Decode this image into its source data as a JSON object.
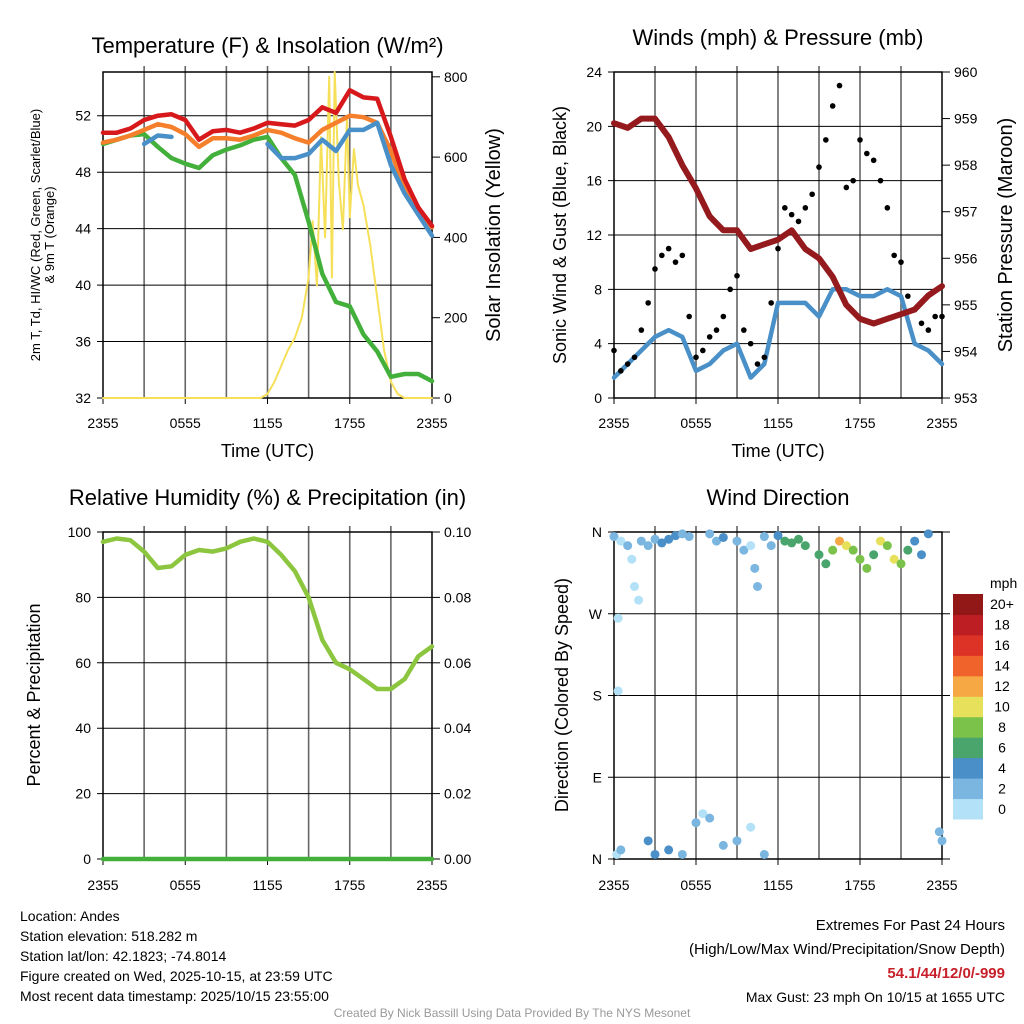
{
  "footer": {
    "location": "Location: Andes",
    "elevation": "Station elevation: 518.282 m",
    "latlon": "Station lat/lon: 42.1823; -74.8014",
    "created": "Figure created on Wed, 2025-10-15, at 23:59 UTC",
    "timestamp": "Most recent data timestamp: 2025/10/15 23:55:00",
    "extremes_title": "Extremes For Past 24 Hours",
    "extremes_legend": "(High/Low/Max Wind/Precipitation/Snow Depth)",
    "extremes_values": "54.1/44/12/0/-999",
    "max_gust": "Max Gust: 23 mph On 10/15 at 1655 UTC",
    "credit": "Created By Nick Bassill Using Data Provided By The NYS Mesonet"
  },
  "colors": {
    "red": "#d7191c",
    "orange": "#f57f2b",
    "blue": "#4a90c8",
    "green": "#44b03c",
    "yellow": "#f6e05a",
    "maroon": "#951a1d",
    "rh": "#8cc63f",
    "precip": "#44b03c",
    "gust": "#000000"
  },
  "chart_data": [
    {
      "type": "line",
      "title": "Temperature (F) & Insolation (W/m²)",
      "xlabel": "Time (UTC)",
      "ylabel": [
        "2m T, Td, HI/WC (Red, Green, Scarlet/Blue)",
        "& 9m T (Orange)"
      ],
      "ylabel_right": "Solar Insolation (Yellow)",
      "xticks": [
        "2355",
        "0555",
        "1155",
        "1755",
        "2355"
      ],
      "xlim": [
        0,
        24
      ],
      "ylim": [
        32,
        55.1
      ],
      "yticks": [
        32,
        36,
        40,
        44,
        48,
        52
      ],
      "ylim_right": [
        0,
        812
      ],
      "yticks_right": [
        0,
        200,
        400,
        600,
        800
      ],
      "x": [
        0,
        1,
        2,
        3,
        4,
        5,
        6,
        7,
        8,
        9,
        10,
        11,
        12,
        13,
        14,
        15,
        16,
        17,
        18,
        19,
        20,
        21,
        22,
        23,
        24
      ],
      "series": [
        {
          "name": "2m T",
          "color_key": "red",
          "axis": "left",
          "values": [
            50.8,
            50.8,
            51.1,
            51.7,
            52.0,
            52.1,
            51.7,
            50.3,
            50.9,
            51.0,
            50.8,
            51.1,
            51.5,
            51.4,
            51.3,
            51.7,
            52.6,
            52.2,
            53.8,
            53.3,
            53.2,
            50.5,
            47.5,
            45.5,
            44.2
          ]
        },
        {
          "name": "9m T",
          "color_key": "orange",
          "axis": "left",
          "values": [
            50.1,
            50.3,
            50.6,
            51.0,
            51.4,
            51.2,
            50.7,
            49.8,
            50.4,
            50.4,
            50.3,
            50.6,
            51.0,
            50.8,
            50.4,
            50.1,
            51.0,
            51.5,
            52.0,
            51.9,
            51.5,
            49.5,
            46.8,
            45.3,
            44.1
          ]
        },
        {
          "name": "HI/WC",
          "color_key": "blue",
          "axis": "left",
          "values": [
            null,
            null,
            null,
            50.0,
            50.6,
            50.5,
            null,
            null,
            null,
            null,
            null,
            null,
            50.0,
            49.0,
            49.0,
            49.3,
            50.3,
            49.5,
            51.0,
            51.0,
            51.5,
            48.5,
            46.5,
            45.0,
            43.5
          ]
        },
        {
          "name": "Td",
          "color_key": "green",
          "axis": "left",
          "values": [
            50.0,
            50.3,
            50.6,
            50.7,
            49.8,
            49.0,
            48.6,
            48.3,
            49.2,
            49.6,
            49.9,
            50.3,
            50.5,
            49.0,
            47.8,
            44.5,
            40.8,
            38.8,
            38.5,
            36.5,
            35.3,
            33.5,
            33.7,
            33.7,
            33.2
          ]
        },
        {
          "name": "Solar Insolation",
          "color_key": "yellow",
          "axis": "right",
          "x": [
            0,
            11.5,
            12,
            12.5,
            13,
            13.5,
            14,
            14.5,
            15,
            15.3,
            15.6,
            15.9,
            16.2,
            16.5,
            16.7,
            16.9,
            17.2,
            17.5,
            17.8,
            18,
            18.3,
            18.6,
            19,
            19.5,
            20,
            20.5,
            21,
            21.5,
            22,
            24
          ],
          "values": [
            0,
            0,
            10,
            40,
            80,
            120,
            150,
            200,
            300,
            440,
            280,
            650,
            400,
            800,
            300,
            812,
            540,
            420,
            700,
            450,
            620,
            530,
            480,
            380,
            250,
            120,
            40,
            10,
            0,
            0
          ]
        }
      ]
    },
    {
      "type": "line",
      "title": "Winds (mph) & Pressure (mb)",
      "xlabel": "Time (UTC)",
      "ylabel": "Sonic Wind & Gust (Blue, Black)",
      "ylabel_right": "Station Pressure (Maroon)",
      "xticks": [
        "2355",
        "0555",
        "1155",
        "1755",
        "2355"
      ],
      "xlim": [
        0,
        24
      ],
      "ylim": [
        0,
        24
      ],
      "yticks": [
        0,
        4,
        8,
        12,
        16,
        20,
        24
      ],
      "ylim_right": [
        953,
        960
      ],
      "yticks_right": [
        953,
        954,
        955,
        956,
        957,
        958,
        959,
        960
      ],
      "x": [
        0,
        1,
        2,
        3,
        4,
        5,
        6,
        7,
        8,
        9,
        10,
        11,
        12,
        13,
        14,
        15,
        16,
        17,
        18,
        19,
        20,
        21,
        22,
        23,
        24
      ],
      "series": [
        {
          "name": "Sonic Wind",
          "color_key": "blue",
          "axis": "left",
          "kind": "line",
          "values": [
            1.5,
            2.5,
            3.5,
            4.5,
            5,
            4.5,
            2,
            2.5,
            3.5,
            4,
            1.5,
            2.5,
            7,
            7,
            7,
            6,
            8,
            8,
            7.5,
            7.5,
            8,
            7.5,
            4,
            3.5,
            2.5
          ]
        },
        {
          "name": "Station Pressure",
          "color_key": "maroon",
          "axis": "right",
          "kind": "line",
          "values": [
            958.9,
            958.8,
            959.0,
            959.0,
            958.6,
            958.0,
            957.5,
            956.9,
            956.6,
            956.6,
            956.2,
            956.3,
            956.4,
            956.6,
            956.2,
            956.0,
            955.6,
            955.0,
            954.7,
            954.6,
            954.7,
            954.8,
            954.9,
            955.2,
            955.4
          ]
        },
        {
          "name": "Gust",
          "color_key": "gust",
          "axis": "left",
          "kind": "scatter",
          "x": [
            0,
            0.5,
            1,
            1.5,
            2,
            2.5,
            3,
            3.5,
            4,
            4.5,
            5,
            5.5,
            6,
            6.5,
            7,
            7.5,
            8,
            8.5,
            9,
            9.5,
            10,
            10.5,
            11,
            11.5,
            12,
            12.5,
            13,
            13.5,
            14,
            14.5,
            15,
            15.5,
            16,
            16.5,
            17,
            17.5,
            18,
            18.5,
            19,
            19.5,
            20,
            20.5,
            21,
            21.5,
            22,
            22.5,
            23,
            23.5,
            24
          ],
          "values": [
            3.5,
            2,
            2.5,
            3,
            5,
            7,
            9.5,
            10.5,
            11,
            10,
            10.5,
            6,
            3,
            3.5,
            4.5,
            5,
            6,
            8,
            9,
            5,
            4,
            2.5,
            3,
            7,
            11,
            14,
            13.5,
            13,
            14,
            15,
            17,
            19,
            21.5,
            23,
            15.5,
            16,
            19,
            18,
            17.5,
            16,
            14,
            10.5,
            10,
            7.5,
            6.5,
            5.5,
            5,
            6,
            6
          ]
        }
      ]
    },
    {
      "type": "line",
      "title": "Relative Humidity (%) & Precipitation (in)",
      "ylabel": "Percent & Precipitation",
      "xticks": [
        "2355",
        "0555",
        "1155",
        "1755",
        "2355"
      ],
      "xlim": [
        0,
        24
      ],
      "ylim": [
        0,
        100
      ],
      "yticks": [
        0,
        20,
        40,
        60,
        80,
        100
      ],
      "ylim_right": [
        0,
        0.1
      ],
      "yticks_right": [
        "0.00",
        "0.02",
        "0.04",
        "0.06",
        "0.08",
        "0.10"
      ],
      "x": [
        0,
        1,
        2,
        3,
        4,
        5,
        6,
        7,
        8,
        9,
        10,
        11,
        12,
        13,
        14,
        15,
        16,
        17,
        18,
        19,
        20,
        21,
        22,
        23,
        24
      ],
      "series": [
        {
          "name": "Relative Humidity",
          "color_key": "rh",
          "axis": "left",
          "values": [
            97,
            98,
            97.5,
            94,
            89,
            89.5,
            93,
            94.5,
            94,
            95,
            97,
            98,
            97,
            93,
            88,
            80,
            67,
            60,
            58,
            55,
            52,
            52,
            55,
            62,
            65
          ]
        },
        {
          "name": "Precipitation",
          "color_key": "precip",
          "axis": "right",
          "values": [
            0,
            0,
            0,
            0,
            0,
            0,
            0,
            0,
            0,
            0,
            0,
            0,
            0,
            0,
            0,
            0,
            0,
            0,
            0,
            0,
            0,
            0,
            0,
            0,
            0
          ]
        }
      ]
    },
    {
      "type": "scatter",
      "title": "Wind Direction",
      "ylabel": "Direction (Colored By Speed)",
      "xticks": [
        "2355",
        "0555",
        "1155",
        "1755",
        "2355"
      ],
      "xlim": [
        0,
        24
      ],
      "ylim": [
        0,
        360
      ],
      "yticks": [
        {
          "v": 0,
          "label": "N"
        },
        {
          "v": 90,
          "label": "E"
        },
        {
          "v": 180,
          "label": "S"
        },
        {
          "v": 270,
          "label": "W"
        },
        {
          "v": 360,
          "label": "N"
        }
      ],
      "points": [
        [
          0,
          355,
          3
        ],
        [
          0.5,
          350,
          1
        ],
        [
          1,
          345,
          2
        ],
        [
          1.3,
          330,
          1
        ],
        [
          1.5,
          300,
          1
        ],
        [
          1.8,
          285,
          1
        ],
        [
          0.3,
          265,
          0
        ],
        [
          0.3,
          185,
          1
        ],
        [
          0.2,
          5,
          1
        ],
        [
          2,
          350,
          2
        ],
        [
          2.5,
          345,
          2
        ],
        [
          3,
          352,
          3
        ],
        [
          3.5,
          348,
          4
        ],
        [
          4,
          352,
          4
        ],
        [
          4.5,
          356,
          4
        ],
        [
          5,
          358,
          3
        ],
        [
          5.5,
          355,
          2
        ],
        [
          7,
          358,
          2
        ],
        [
          7.5,
          350,
          2
        ],
        [
          8,
          354,
          4
        ],
        [
          9,
          350,
          2
        ],
        [
          9.5,
          340,
          2
        ],
        [
          10,
          345,
          1
        ],
        [
          10.3,
          320,
          2
        ],
        [
          10.5,
          300,
          2
        ],
        [
          11,
          355,
          2
        ],
        [
          11.5,
          345,
          3
        ],
        [
          12,
          356,
          5
        ],
        [
          12.5,
          350,
          6
        ],
        [
          13,
          348,
          6
        ],
        [
          13.5,
          352,
          7
        ],
        [
          14,
          345,
          6
        ],
        [
          15,
          335,
          7
        ],
        [
          15.5,
          325,
          6
        ],
        [
          16,
          340,
          8
        ],
        [
          16.5,
          350,
          12
        ],
        [
          17,
          345,
          10
        ],
        [
          17.5,
          340,
          8
        ],
        [
          18,
          330,
          8
        ],
        [
          18.5,
          320,
          8
        ],
        [
          19,
          335,
          6
        ],
        [
          19.5,
          350,
          10
        ],
        [
          20,
          345,
          8
        ],
        [
          20.5,
          330,
          10
        ],
        [
          21,
          325,
          8
        ],
        [
          21.5,
          340,
          6
        ],
        [
          22,
          350,
          4
        ],
        [
          22.5,
          335,
          4
        ],
        [
          23,
          358,
          4
        ],
        [
          0.5,
          10,
          3
        ],
        [
          2.5,
          20,
          4
        ],
        [
          3,
          5,
          4
        ],
        [
          4,
          10,
          4
        ],
        [
          5,
          5,
          3
        ],
        [
          6,
          40,
          2
        ],
        [
          6.5,
          50,
          1
        ],
        [
          7,
          45,
          2
        ],
        [
          8,
          15,
          3
        ],
        [
          9,
          20,
          3
        ],
        [
          10,
          35,
          1
        ],
        [
          11,
          5,
          3
        ],
        [
          24,
          20,
          3
        ],
        [
          23.8,
          30,
          2
        ]
      ],
      "colorbar": {
        "title": "mph",
        "levels": [
          "0",
          "2",
          "4",
          "6",
          "8",
          "10",
          "12",
          "14",
          "16",
          "18",
          "20+"
        ],
        "colors": [
          "#b3e1f7",
          "#7ab6e0",
          "#4a8fc7",
          "#4aa56c",
          "#7ac24a",
          "#e6e05a",
          "#f5a843",
          "#f0632a",
          "#dd3327",
          "#bc1e24",
          "#921717"
        ]
      }
    }
  ]
}
